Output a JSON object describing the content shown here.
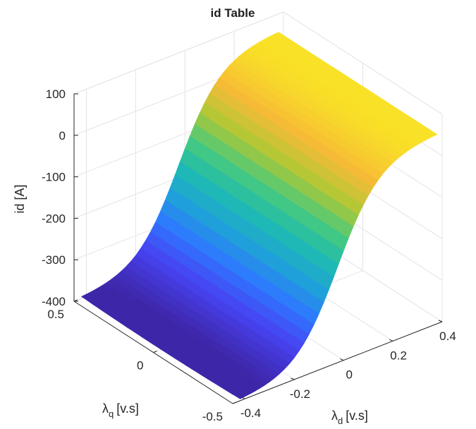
{
  "chart_data": {
    "type": "surface",
    "title": "id Table",
    "zlabel": "id [A]",
    "xlabel": {
      "symbol": "λ",
      "sub": "d",
      "unit": "[v.s]"
    },
    "ylabel": {
      "symbol": "λ",
      "sub": "q",
      "unit": "[v.s]"
    },
    "xlim": [
      -0.45,
      0.4
    ],
    "ylim": [
      -0.5,
      0.5
    ],
    "zlim": [
      -400,
      100
    ],
    "xticks": [
      -0.4,
      -0.2,
      0,
      0.2,
      0.4
    ],
    "xtick_labels": [
      "-0.4",
      "-0.2",
      "0",
      "0.2",
      "0.4"
    ],
    "yticks": [
      -0.5,
      0,
      0.5
    ],
    "ytick_labels": [
      "-0.5",
      "0",
      "0.5"
    ],
    "zticks": [
      -400,
      -300,
      -200,
      -100,
      0,
      100
    ],
    "ztick_labels": [
      "-400",
      "-300",
      "-200",
      "-100",
      "0",
      "100"
    ],
    "grid": true,
    "colormap": "parula",
    "colormap_stops": [
      "#3e26a8",
      "#4743f3",
      "#2e78fe",
      "#1fa3d8",
      "#1ebbb2",
      "#48c97e",
      "#aec836",
      "#f6bb36",
      "#f9e127"
    ],
    "surface_description": "id rises nearly linearly with lambda_d, saturating near 50 A at high lambda_d and near -390 A at low lambda_d; slight dependence on lambda_q near the low-end edge.",
    "surface_model": {
      "id_min": -390,
      "id_max": 50,
      "lambda_d_low": -0.35,
      "lambda_d_high": 0.3
    }
  }
}
